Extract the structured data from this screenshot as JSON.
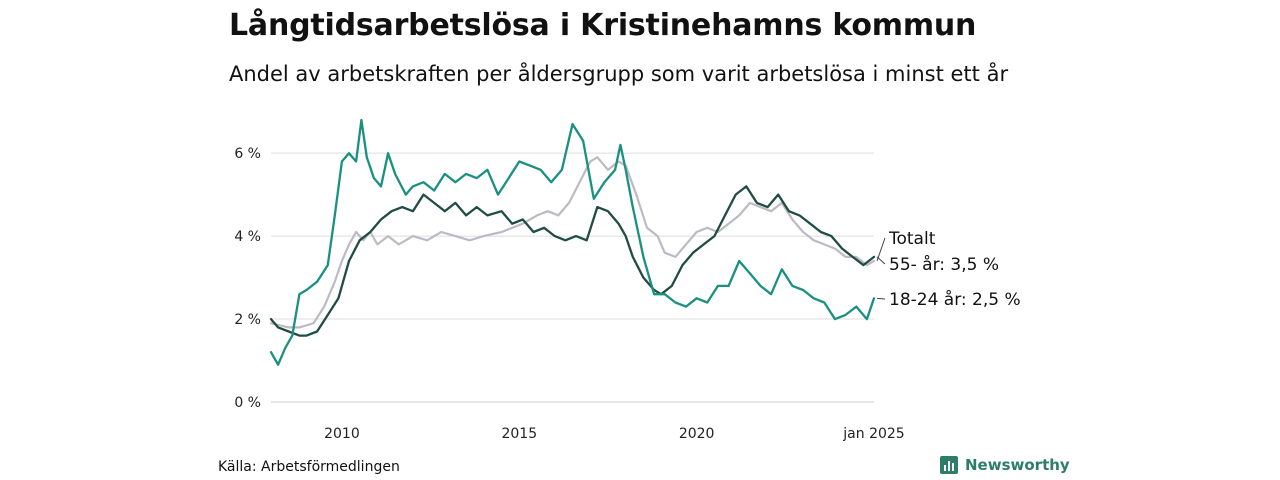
{
  "title": "Långtidsarbetslösa i Kristinehamns kommun",
  "subtitle": "Andel av arbetskraften per åldersgrupp som varit arbetslösa i minst ett år",
  "source": "Källa: Arbetsförmedlingen",
  "brand": "Newsworthy",
  "colors": {
    "totalt": "#bdb9c5",
    "age55": "#1f4d44",
    "age18_24": "#1a9080",
    "grid": "#dddddd",
    "brand": "#2e7d6b"
  },
  "chart_data": {
    "type": "line",
    "title": "Långtidsarbetslösa i Kristinehamns kommun",
    "xlabel": "",
    "ylabel": "",
    "xlim": [
      2008.0,
      2025.0
    ],
    "ylim": [
      0,
      6.8
    ],
    "y_ticks": [
      0,
      2,
      4,
      6
    ],
    "y_tick_labels": [
      "0 %",
      "2 %",
      "4 %",
      "6 %"
    ],
    "x_ticks": [
      2010,
      2015,
      2020,
      2025.0
    ],
    "x_tick_labels": [
      "2010",
      "2015",
      "2020",
      "jan 2025"
    ],
    "series": [
      {
        "name": "Totalt",
        "label": "Totalt",
        "points": [
          [
            2008.0,
            1.9
          ],
          [
            2008.5,
            1.8
          ],
          [
            2008.8,
            1.8
          ],
          [
            2009.2,
            1.9
          ],
          [
            2009.5,
            2.3
          ],
          [
            2009.8,
            2.9
          ],
          [
            2010.0,
            3.4
          ],
          [
            2010.2,
            3.8
          ],
          [
            2010.4,
            4.1
          ],
          [
            2010.6,
            3.9
          ],
          [
            2010.8,
            4.1
          ],
          [
            2011.0,
            3.8
          ],
          [
            2011.3,
            4.0
          ],
          [
            2011.6,
            3.8
          ],
          [
            2012.0,
            4.0
          ],
          [
            2012.4,
            3.9
          ],
          [
            2012.8,
            4.1
          ],
          [
            2013.2,
            4.0
          ],
          [
            2013.6,
            3.9
          ],
          [
            2014.0,
            4.0
          ],
          [
            2014.5,
            4.1
          ],
          [
            2014.8,
            4.2
          ],
          [
            2015.1,
            4.3
          ],
          [
            2015.5,
            4.5
          ],
          [
            2015.8,
            4.6
          ],
          [
            2016.1,
            4.5
          ],
          [
            2016.4,
            4.8
          ],
          [
            2016.7,
            5.3
          ],
          [
            2017.0,
            5.8
          ],
          [
            2017.2,
            5.9
          ],
          [
            2017.5,
            5.6
          ],
          [
            2017.8,
            5.8
          ],
          [
            2018.0,
            5.7
          ],
          [
            2018.3,
            5.0
          ],
          [
            2018.6,
            4.2
          ],
          [
            2018.9,
            4.0
          ],
          [
            2019.1,
            3.6
          ],
          [
            2019.4,
            3.5
          ],
          [
            2019.7,
            3.8
          ],
          [
            2020.0,
            4.1
          ],
          [
            2020.3,
            4.2
          ],
          [
            2020.6,
            4.1
          ],
          [
            2020.9,
            4.3
          ],
          [
            2021.2,
            4.5
          ],
          [
            2021.5,
            4.8
          ],
          [
            2021.8,
            4.7
          ],
          [
            2022.1,
            4.6
          ],
          [
            2022.4,
            4.8
          ],
          [
            2022.7,
            4.4
          ],
          [
            2023.0,
            4.1
          ],
          [
            2023.3,
            3.9
          ],
          [
            2023.6,
            3.8
          ],
          [
            2023.9,
            3.7
          ],
          [
            2024.2,
            3.5
          ],
          [
            2024.5,
            3.5
          ],
          [
            2024.8,
            3.3
          ],
          [
            2025.0,
            3.4
          ]
        ]
      },
      {
        "name": "55- år",
        "label": "55- år: 3,5 %",
        "points": [
          [
            2008.0,
            2.0
          ],
          [
            2008.2,
            1.8
          ],
          [
            2008.5,
            1.7
          ],
          [
            2008.8,
            1.6
          ],
          [
            2009.0,
            1.6
          ],
          [
            2009.3,
            1.7
          ],
          [
            2009.6,
            2.1
          ],
          [
            2009.9,
            2.5
          ],
          [
            2010.2,
            3.4
          ],
          [
            2010.5,
            3.9
          ],
          [
            2010.8,
            4.1
          ],
          [
            2011.1,
            4.4
          ],
          [
            2011.4,
            4.6
          ],
          [
            2011.7,
            4.7
          ],
          [
            2012.0,
            4.6
          ],
          [
            2012.3,
            5.0
          ],
          [
            2012.6,
            4.8
          ],
          [
            2012.9,
            4.6
          ],
          [
            2013.2,
            4.8
          ],
          [
            2013.5,
            4.5
          ],
          [
            2013.8,
            4.7
          ],
          [
            2014.1,
            4.5
          ],
          [
            2014.5,
            4.6
          ],
          [
            2014.8,
            4.3
          ],
          [
            2015.1,
            4.4
          ],
          [
            2015.4,
            4.1
          ],
          [
            2015.7,
            4.2
          ],
          [
            2016.0,
            4.0
          ],
          [
            2016.3,
            3.9
          ],
          [
            2016.6,
            4.0
          ],
          [
            2016.9,
            3.9
          ],
          [
            2017.2,
            4.7
          ],
          [
            2017.5,
            4.6
          ],
          [
            2017.8,
            4.3
          ],
          [
            2018.0,
            4.0
          ],
          [
            2018.2,
            3.5
          ],
          [
            2018.5,
            3.0
          ],
          [
            2018.8,
            2.7
          ],
          [
            2019.0,
            2.6
          ],
          [
            2019.3,
            2.8
          ],
          [
            2019.6,
            3.3
          ],
          [
            2019.9,
            3.6
          ],
          [
            2020.2,
            3.8
          ],
          [
            2020.5,
            4.0
          ],
          [
            2020.8,
            4.5
          ],
          [
            2021.1,
            5.0
          ],
          [
            2021.4,
            5.2
          ],
          [
            2021.7,
            4.8
          ],
          [
            2022.0,
            4.7
          ],
          [
            2022.3,
            5.0
          ],
          [
            2022.6,
            4.6
          ],
          [
            2022.9,
            4.5
          ],
          [
            2023.2,
            4.3
          ],
          [
            2023.5,
            4.1
          ],
          [
            2023.8,
            4.0
          ],
          [
            2024.1,
            3.7
          ],
          [
            2024.4,
            3.5
          ],
          [
            2024.7,
            3.3
          ],
          [
            2025.0,
            3.5
          ]
        ]
      },
      {
        "name": "18-24 år",
        "label": "18-24 år: 2,5 %",
        "points": [
          [
            2008.0,
            1.2
          ],
          [
            2008.2,
            0.9
          ],
          [
            2008.4,
            1.3
          ],
          [
            2008.6,
            1.6
          ],
          [
            2008.8,
            2.6
          ],
          [
            2009.0,
            2.7
          ],
          [
            2009.3,
            2.9
          ],
          [
            2009.6,
            3.3
          ],
          [
            2009.8,
            4.5
          ],
          [
            2010.0,
            5.8
          ],
          [
            2010.2,
            6.0
          ],
          [
            2010.4,
            5.8
          ],
          [
            2010.55,
            6.8
          ],
          [
            2010.7,
            5.9
          ],
          [
            2010.9,
            5.4
          ],
          [
            2011.1,
            5.2
          ],
          [
            2011.3,
            6.0
          ],
          [
            2011.5,
            5.5
          ],
          [
            2011.8,
            5.0
          ],
          [
            2012.0,
            5.2
          ],
          [
            2012.3,
            5.3
          ],
          [
            2012.6,
            5.1
          ],
          [
            2012.9,
            5.5
          ],
          [
            2013.2,
            5.3
          ],
          [
            2013.5,
            5.5
          ],
          [
            2013.8,
            5.4
          ],
          [
            2014.1,
            5.6
          ],
          [
            2014.4,
            5.0
          ],
          [
            2014.7,
            5.4
          ],
          [
            2015.0,
            5.8
          ],
          [
            2015.3,
            5.7
          ],
          [
            2015.6,
            5.6
          ],
          [
            2015.9,
            5.3
          ],
          [
            2016.2,
            5.6
          ],
          [
            2016.5,
            6.7
          ],
          [
            2016.8,
            6.3
          ],
          [
            2017.1,
            4.9
          ],
          [
            2017.4,
            5.3
          ],
          [
            2017.7,
            5.6
          ],
          [
            2017.85,
            6.2
          ],
          [
            2018.0,
            5.6
          ],
          [
            2018.2,
            4.7
          ],
          [
            2018.5,
            3.5
          ],
          [
            2018.8,
            2.6
          ],
          [
            2019.1,
            2.6
          ],
          [
            2019.4,
            2.4
          ],
          [
            2019.7,
            2.3
          ],
          [
            2020.0,
            2.5
          ],
          [
            2020.3,
            2.4
          ],
          [
            2020.6,
            2.8
          ],
          [
            2020.9,
            2.8
          ],
          [
            2021.2,
            3.4
          ],
          [
            2021.5,
            3.1
          ],
          [
            2021.8,
            2.8
          ],
          [
            2022.1,
            2.6
          ],
          [
            2022.4,
            3.2
          ],
          [
            2022.7,
            2.8
          ],
          [
            2023.0,
            2.7
          ],
          [
            2023.3,
            2.5
          ],
          [
            2023.6,
            2.4
          ],
          [
            2023.9,
            2.0
          ],
          [
            2024.2,
            2.1
          ],
          [
            2024.5,
            2.3
          ],
          [
            2024.8,
            2.0
          ],
          [
            2025.0,
            2.5
          ]
        ]
      }
    ]
  }
}
